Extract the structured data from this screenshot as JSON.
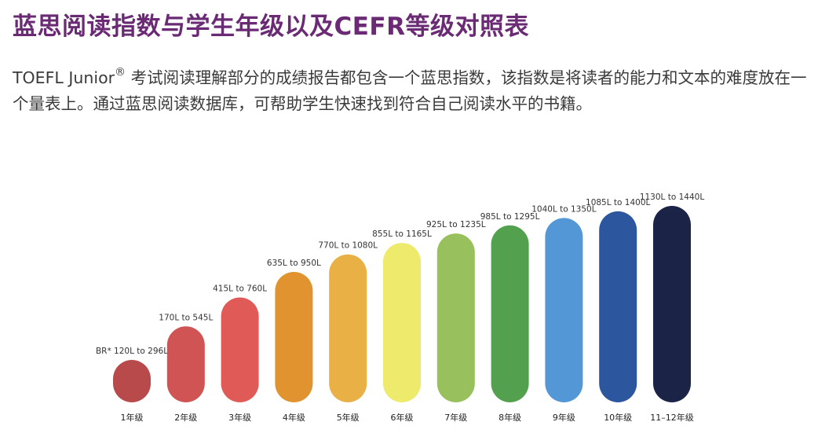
{
  "title": "蓝思阅读指数与学生年级以及CEFR等级对照表",
  "intro": {
    "lead": "TOEFL Junior",
    "mark": "®",
    "text": " 考试阅读理解部分的成绩报告都包含一个蓝思指数，该指数是将读者的能力和文本的难度放在一个量表上。通过蓝思阅读数据库，可帮助学生快速找到符合自己阅读水平的书籍。"
  },
  "chart_data": {
    "type": "bar",
    "categories": [
      "1年级",
      "2年级",
      "3年级",
      "4年级",
      "5年级",
      "6年级",
      "7年级",
      "8年级",
      "9年级",
      "10年级",
      "11–12年级"
    ],
    "range_labels": [
      "BR* 120L to 296L",
      "170L to 545L",
      "415L to 760L",
      "635L to 950L",
      "770L to 1080L",
      "855L to 1165L",
      "925L to 1235L",
      "985L to 1295L",
      "1040L to 1350L",
      "1085L to 1400L",
      "1130L to 1440L"
    ],
    "series": [
      {
        "low": [
          120,
          170,
          415,
          635,
          770,
          855,
          925,
          985,
          1040,
          1085,
          1130
        ],
        "high": [
          296,
          545,
          760,
          950,
          1080,
          1165,
          1235,
          1295,
          1350,
          1400,
          1440
        ]
      }
    ],
    "colors": [
      "#b84a4b",
      "#d05454",
      "#e05a58",
      "#e0932f",
      "#e9b145",
      "#eeea6c",
      "#98c05c",
      "#53a14e",
      "#5497d6",
      "#2c569e",
      "#1b2347"
    ],
    "xlabel": "",
    "ylabel": "",
    "grid": false,
    "legend": "none"
  }
}
